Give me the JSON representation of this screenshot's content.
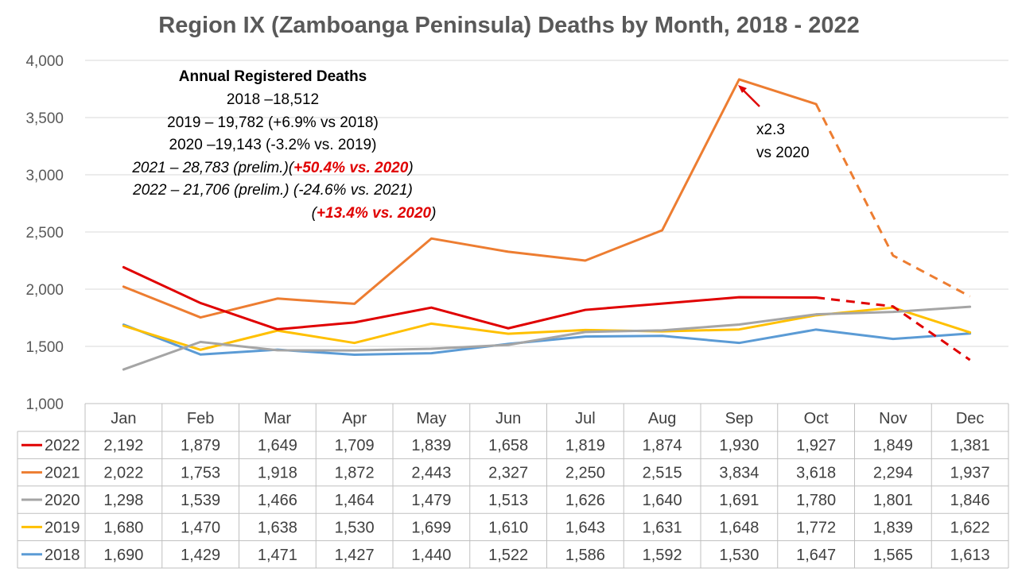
{
  "chart_data": {
    "type": "line",
    "title": "Region IX (Zamboanga Peninsula) Deaths by Month, 2018 - 2022",
    "categories": [
      "Jan",
      "Feb",
      "Mar",
      "Apr",
      "May",
      "Jun",
      "Jul",
      "Aug",
      "Sep",
      "Oct",
      "Nov",
      "Dec"
    ],
    "y_ticks": [
      "1,000",
      "1,500",
      "2,000",
      "2,500",
      "3,000",
      "3,500",
      "4,000"
    ],
    "ylim": [
      1000,
      4000
    ],
    "grid": true,
    "legend": "data-table",
    "series": [
      {
        "name": "2022",
        "color": "#e00000",
        "dashed_from_index": 9,
        "values": [
          2192,
          1879,
          1649,
          1709,
          1839,
          1658,
          1819,
          1874,
          1930,
          1927,
          1849,
          1381
        ],
        "labels": [
          "2,192",
          "1,879",
          "1,649",
          "1,709",
          "1,839",
          "1,658",
          "1,819",
          "1,874",
          "1,930",
          "1,927",
          "1,849",
          "1,381"
        ]
      },
      {
        "name": "2021",
        "color": "#ed7d31",
        "dashed_from_index": 9,
        "values": [
          2022,
          1753,
          1918,
          1872,
          2443,
          2327,
          2250,
          2515,
          3834,
          3618,
          2294,
          1937
        ],
        "labels": [
          "2,022",
          "1,753",
          "1,918",
          "1,872",
          "2,443",
          "2,327",
          "2,250",
          "2,515",
          "3,834",
          "3,618",
          "2,294",
          "1,937"
        ]
      },
      {
        "name": "2020",
        "color": "#a5a5a5",
        "dashed_from_index": null,
        "values": [
          1298,
          1539,
          1466,
          1464,
          1479,
          1513,
          1626,
          1640,
          1691,
          1780,
          1801,
          1846
        ],
        "labels": [
          "1,298",
          "1,539",
          "1,466",
          "1,464",
          "1,479",
          "1,513",
          "1,626",
          "1,640",
          "1,691",
          "1,780",
          "1,801",
          "1,846"
        ]
      },
      {
        "name": "2019",
        "color": "#ffc000",
        "dashed_from_index": null,
        "values": [
          1680,
          1470,
          1638,
          1530,
          1699,
          1610,
          1643,
          1631,
          1648,
          1772,
          1839,
          1622
        ],
        "labels": [
          "1,680",
          "1,470",
          "1,638",
          "1,530",
          "1,699",
          "1,610",
          "1,643",
          "1,631",
          "1,648",
          "1,772",
          "1,839",
          "1,622"
        ]
      },
      {
        "name": "2018",
        "color": "#5b9bd5",
        "dashed_from_index": null,
        "values": [
          1690,
          1429,
          1471,
          1427,
          1440,
          1522,
          1586,
          1592,
          1530,
          1647,
          1565,
          1613
        ],
        "labels": [
          "1,690",
          "1,429",
          "1,471",
          "1,427",
          "1,440",
          "1,522",
          "1,586",
          "1,592",
          "1,530",
          "1,647",
          "1,565",
          "1,613"
        ]
      }
    ],
    "annotations": {
      "summary": {
        "heading": "Annual Registered Deaths",
        "line_2018": "2018 –18,512",
        "line_2019": "2019 – 19,782 (+6.9% vs 2018)",
        "line_2020": "2020 –19,143 (-3.2% vs. 2019)",
        "line_2021_main": "2021 – 28,783 (prelim.)(",
        "line_2021_red": "+50.4% vs. 2020",
        "line_2021_close": ")",
        "line_2022": "2022 – 21,706 (prelim.) (-24.6% vs. 2021)",
        "line_2022b_open": "(",
        "line_2022b_red": "+13.4% vs. 2020",
        "line_2022b_close": ")"
      },
      "sep_peak": {
        "line1": "x2.3",
        "line2": "vs 2020",
        "arrow_color": "#e00000"
      }
    }
  }
}
